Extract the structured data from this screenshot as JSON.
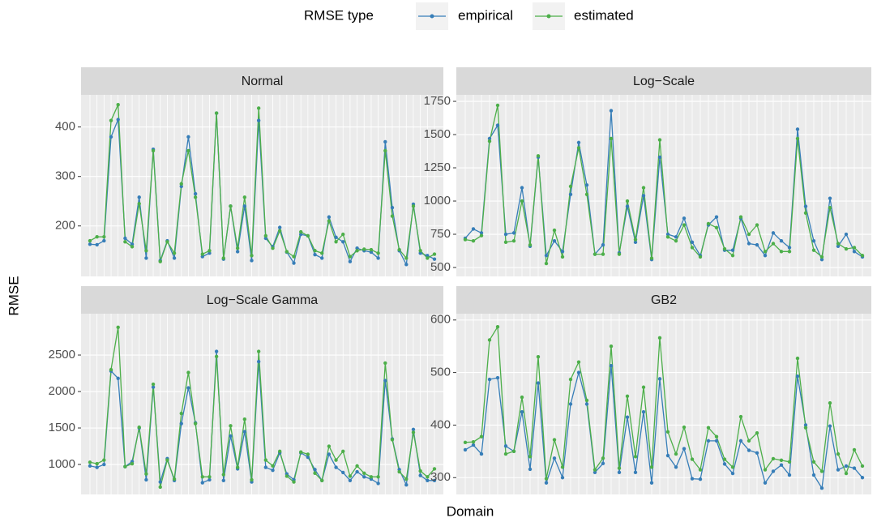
{
  "legend_title": "RMSE type",
  "x_label": "Domain",
  "y_label": "RMSE",
  "chart_data": [
    {
      "type": "line",
      "title": "Normal",
      "categories": [
        null,
        null,
        null,
        null,
        null,
        null,
        null,
        null,
        null,
        null,
        null,
        null,
        null,
        null,
        null,
        null,
        null,
        null,
        null,
        null,
        null,
        null,
        null,
        null,
        null,
        null,
        null,
        null,
        null,
        null,
        null,
        null,
        null,
        null,
        null,
        null,
        null,
        null,
        null,
        null,
        null,
        null,
        null,
        null,
        null,
        null,
        null,
        null,
        null,
        null
      ],
      "series": [
        {
          "name": "empirical",
          "color": "#377eb8",
          "values": [
            163,
            162,
            170,
            380,
            415,
            175,
            163,
            258,
            135,
            355,
            130,
            170,
            135,
            280,
            380,
            265,
            138,
            145,
            428,
            133,
            240,
            148,
            240,
            130,
            413,
            175,
            158,
            197,
            147,
            125,
            183,
            180,
            142,
            135,
            218,
            177,
            168,
            128,
            155,
            150,
            147,
            135,
            370,
            237,
            150,
            122,
            244,
            145,
            140,
            133
          ]
        },
        {
          "name": "estimated",
          "color": "#4daf4a",
          "values": [
            170,
            178,
            178,
            413,
            445,
            168,
            158,
            245,
            150,
            352,
            128,
            168,
            145,
            285,
            352,
            258,
            143,
            150,
            428,
            135,
            240,
            155,
            258,
            140,
            438,
            180,
            155,
            190,
            148,
            138,
            188,
            180,
            150,
            145,
            210,
            168,
            183,
            138,
            150,
            153,
            152,
            145,
            352,
            220,
            152,
            135,
            240,
            150,
            135,
            143
          ]
        }
      ],
      "ylim": [
        98,
        465
      ],
      "yticks": [
        200,
        300,
        400
      ],
      "grid": true
    },
    {
      "type": "line",
      "title": "Log−Scale",
      "categories": [
        null,
        null,
        null,
        null,
        null,
        null,
        null,
        null,
        null,
        null,
        null,
        null,
        null,
        null,
        null,
        null,
        null,
        null,
        null,
        null,
        null,
        null,
        null,
        null,
        null,
        null,
        null,
        null,
        null,
        null,
        null,
        null,
        null,
        null,
        null,
        null,
        null,
        null,
        null,
        null,
        null,
        null,
        null,
        null,
        null,
        null,
        null,
        null,
        null,
        null
      ],
      "series": [
        {
          "name": "empirical",
          "color": "#377eb8",
          "values": [
            720,
            790,
            760,
            1470,
            1570,
            750,
            760,
            1100,
            660,
            1330,
            590,
            700,
            620,
            1050,
            1440,
            1120,
            600,
            670,
            1680,
            610,
            960,
            690,
            1040,
            560,
            1330,
            750,
            730,
            870,
            690,
            590,
            820,
            880,
            630,
            630,
            870,
            680,
            670,
            590,
            760,
            700,
            650,
            1540,
            960,
            700,
            560,
            1020,
            660,
            750,
            620,
            580
          ]
        },
        {
          "name": "estimated",
          "color": "#4daf4a",
          "values": [
            710,
            700,
            740,
            1450,
            1720,
            690,
            700,
            1000,
            670,
            1340,
            530,
            780,
            580,
            1110,
            1400,
            1050,
            600,
            600,
            1470,
            600,
            1000,
            710,
            1100,
            570,
            1460,
            730,
            700,
            820,
            650,
            580,
            830,
            800,
            640,
            590,
            880,
            750,
            820,
            620,
            680,
            620,
            620,
            1470,
            910,
            630,
            580,
            950,
            680,
            640,
            650,
            590
          ]
        }
      ],
      "ylim": [
        433,
        1799
      ],
      "yticks": [
        500,
        750,
        1000,
        1250,
        1500,
        1750
      ],
      "grid": true
    },
    {
      "type": "line",
      "title": "Log−Scale Gamma",
      "categories": [
        null,
        null,
        null,
        null,
        null,
        null,
        null,
        null,
        null,
        null,
        null,
        null,
        null,
        null,
        null,
        null,
        null,
        null,
        null,
        null,
        null,
        null,
        null,
        null,
        null,
        null,
        null,
        null,
        null,
        null,
        null,
        null,
        null,
        null,
        null,
        null,
        null,
        null,
        null,
        null,
        null,
        null,
        null,
        null,
        null,
        null,
        null,
        null,
        null,
        null
      ],
      "series": [
        {
          "name": "empirical",
          "color": "#377eb8",
          "values": [
            980,
            960,
            1000,
            2280,
            2180,
            970,
            1040,
            1500,
            790,
            2060,
            760,
            1080,
            780,
            1560,
            2050,
            1570,
            750,
            790,
            2550,
            780,
            1390,
            940,
            1450,
            760,
            2410,
            960,
            920,
            1160,
            870,
            790,
            1160,
            1100,
            930,
            780,
            1140,
            960,
            890,
            780,
            900,
            830,
            800,
            740,
            2150,
            1350,
            930,
            720,
            1480,
            850,
            780,
            780
          ]
        },
        {
          "name": "estimated",
          "color": "#4daf4a",
          "values": [
            1030,
            1010,
            1060,
            2300,
            2880,
            970,
            1010,
            1510,
            870,
            2100,
            690,
            1060,
            800,
            1700,
            2260,
            1560,
            830,
            830,
            2480,
            860,
            1530,
            960,
            1620,
            790,
            2550,
            1060,
            980,
            1180,
            840,
            760,
            1170,
            1140,
            880,
            780,
            1250,
            1060,
            1180,
            840,
            980,
            880,
            830,
            830,
            2390,
            1340,
            900,
            800,
            1440,
            910,
            830,
            940
          ]
        }
      ],
      "ylim": [
        589,
        3067
      ],
      "yticks": [
        1000,
        1500,
        2000,
        2500
      ],
      "grid": true
    },
    {
      "type": "line",
      "title": "GB2",
      "categories": [
        null,
        null,
        null,
        null,
        null,
        null,
        null,
        null,
        null,
        null,
        null,
        null,
        null,
        null,
        null,
        null,
        null,
        null,
        null,
        null,
        null,
        null,
        null,
        null,
        null,
        null,
        null,
        null,
        null,
        null,
        null,
        null,
        null,
        null,
        null,
        null,
        null,
        null,
        null,
        null,
        null,
        null,
        null,
        null,
        null,
        null,
        null,
        null,
        null,
        null
      ],
      "series": [
        {
          "name": "empirical",
          "color": "#377eb8",
          "values": [
            353,
            362,
            345,
            487,
            490,
            360,
            350,
            425,
            316,
            480,
            290,
            337,
            300,
            440,
            500,
            440,
            310,
            327,
            513,
            310,
            415,
            310,
            425,
            290,
            488,
            342,
            320,
            355,
            298,
            297,
            370,
            370,
            326,
            308,
            370,
            352,
            347,
            290,
            312,
            324,
            305,
            493,
            400,
            305,
            280,
            398,
            315,
            322,
            318,
            300
          ]
        },
        {
          "name": "estimated",
          "color": "#4daf4a",
          "values": [
            367,
            368,
            378,
            562,
            587,
            345,
            350,
            453,
            340,
            530,
            298,
            372,
            320,
            487,
            520,
            447,
            315,
            337,
            550,
            318,
            455,
            340,
            472,
            320,
            566,
            387,
            345,
            396,
            335,
            315,
            395,
            378,
            335,
            320,
            416,
            370,
            385,
            315,
            336,
            333,
            330,
            527,
            395,
            330,
            312,
            442,
            345,
            308,
            353,
            322
          ]
        }
      ],
      "ylim": [
        268,
        612
      ],
      "yticks": [
        300,
        400,
        500,
        600
      ],
      "grid": true
    }
  ]
}
